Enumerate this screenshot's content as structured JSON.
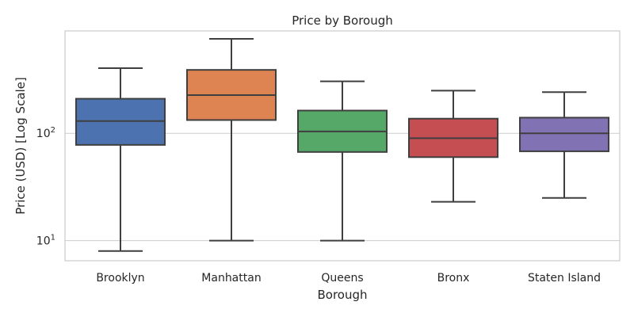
{
  "chart_data": {
    "type": "box",
    "title": "Price by Borough",
    "xlabel": "Borough",
    "ylabel": "Price (USD) [Log Scale]",
    "yscale": "log",
    "ylim": [
      6.5,
      900
    ],
    "ytick_values": [
      10,
      100
    ],
    "ytick_labels": [
      {
        "base": "10",
        "exp": "1"
      },
      {
        "base": "10",
        "exp": "2"
      }
    ],
    "grid": "horizontal",
    "categories": [
      "Brooklyn",
      "Manhattan",
      "Queens",
      "Bronx",
      "Staten Island"
    ],
    "boxes": [
      {
        "name": "Brooklyn",
        "whisker_low": 8,
        "q1": 78,
        "median": 130,
        "q3": 210,
        "whisker_high": 405,
        "color": "#4c72b0"
      },
      {
        "name": "Manhattan",
        "whisker_low": 10,
        "q1": 133,
        "median": 227,
        "q3": 390,
        "whisker_high": 760,
        "color": "#dd8452"
      },
      {
        "name": "Queens",
        "whisker_low": 10,
        "q1": 67,
        "median": 104,
        "q3": 163,
        "whisker_high": 305,
        "color": "#55a868"
      },
      {
        "name": "Bronx",
        "whisker_low": 23,
        "q1": 60,
        "median": 90,
        "q3": 137,
        "whisker_high": 250,
        "color": "#c44e52"
      },
      {
        "name": "Staten Island",
        "whisker_low": 25,
        "q1": 68,
        "median": 100,
        "q3": 140,
        "whisker_high": 242,
        "color": "#8172b3"
      }
    ]
  }
}
